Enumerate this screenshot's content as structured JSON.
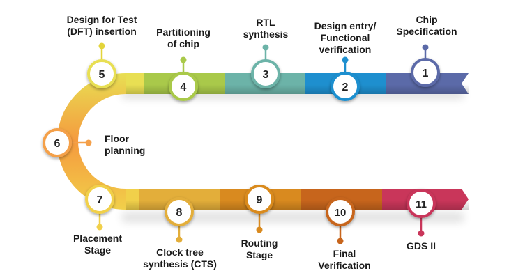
{
  "diagram": {
    "steps": [
      {
        "number": "1",
        "label": "Chip\nSpecification",
        "color": "#5b6aa8"
      },
      {
        "number": "2",
        "label": "Design entry/\nFunctional\nverification",
        "color": "#1e8fcf"
      },
      {
        "number": "3",
        "label": "RTL\nsynthesis",
        "color": "#6cb3a8"
      },
      {
        "number": "4",
        "label": "Partitioning\nof chip",
        "color": "#a9c94a"
      },
      {
        "number": "5",
        "label": "Design for Test\n(DFT) insertion",
        "color": "#e8df53"
      },
      {
        "number": "6",
        "label": "Floor\nplanning",
        "color": "#f4a04a"
      },
      {
        "number": "7",
        "label": "Placement\nStage",
        "color": "#f1d04a"
      },
      {
        "number": "8",
        "label": "Clock tree\nsynthesis (CTS)",
        "color": "#e3ae3a"
      },
      {
        "number": "9",
        "label": "Routing\nStage",
        "color": "#d98a1f"
      },
      {
        "number": "10",
        "label": "Final\nVerification",
        "color": "#c7651c"
      },
      {
        "number": "11",
        "label": "GDS II",
        "color": "#c9365a"
      }
    ]
  }
}
